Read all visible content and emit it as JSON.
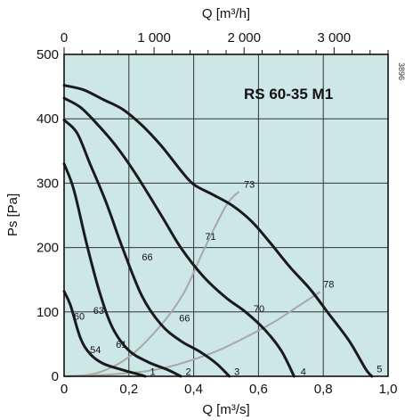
{
  "chart_data": {
    "type": "line",
    "title": "RS 60-35 M1",
    "side_code": "3896",
    "xlabel": "Q [m³/s]",
    "ylabel": "Ps [Pa]",
    "x2label": "Q [m³/h]",
    "xlim": [
      0,
      1.0
    ],
    "ylim": [
      0,
      500
    ],
    "x2lim": [
      0,
      3600
    ],
    "x_ticks": [
      0,
      0.2,
      0.4,
      0.6,
      0.8,
      1.0
    ],
    "x_tick_labels": [
      "0",
      "0,2",
      "0,4",
      "0,6",
      "0,8",
      "1,0"
    ],
    "y_ticks": [
      0,
      100,
      200,
      300,
      400,
      500
    ],
    "y_tick_labels": [
      "0",
      "100",
      "200",
      "300",
      "400",
      "500"
    ],
    "x2_ticks": [
      0,
      1000,
      2000,
      3000
    ],
    "x2_tick_labels": [
      "0",
      "1 000",
      "2 000",
      "3 000"
    ],
    "grid": true,
    "colors": {
      "plot_bg": "#cde6e6",
      "grid": "#333333",
      "curve": "#1a1a1a",
      "efficiency": "#a8a8a8"
    },
    "series": [
      {
        "name": "1",
        "points": [
          [
            0,
            132
          ],
          [
            0.02,
            110
          ],
          [
            0.05,
            60
          ],
          [
            0.08,
            35
          ],
          [
            0.12,
            20
          ],
          [
            0.18,
            10
          ],
          [
            0.23,
            3
          ],
          [
            0.25,
            0
          ]
        ]
      },
      {
        "name": "2",
        "points": [
          [
            0,
            330
          ],
          [
            0.03,
            290
          ],
          [
            0.07,
            205
          ],
          [
            0.11,
            130
          ],
          [
            0.15,
            75
          ],
          [
            0.2,
            40
          ],
          [
            0.26,
            22
          ],
          [
            0.32,
            10
          ],
          [
            0.36,
            0
          ]
        ]
      },
      {
        "name": "3",
        "points": [
          [
            0,
            398
          ],
          [
            0.04,
            378
          ],
          [
            0.08,
            330
          ],
          [
            0.13,
            270
          ],
          [
            0.18,
            200
          ],
          [
            0.24,
            125
          ],
          [
            0.3,
            80
          ],
          [
            0.36,
            55
          ],
          [
            0.42,
            38
          ],
          [
            0.47,
            20
          ],
          [
            0.51,
            0
          ]
        ]
      },
      {
        "name": "4",
        "points": [
          [
            0,
            432
          ],
          [
            0.05,
            418
          ],
          [
            0.1,
            393
          ],
          [
            0.16,
            358
          ],
          [
            0.22,
            315
          ],
          [
            0.3,
            250
          ],
          [
            0.36,
            200
          ],
          [
            0.43,
            155
          ],
          [
            0.5,
            122
          ],
          [
            0.56,
            100
          ],
          [
            0.62,
            72
          ],
          [
            0.67,
            40
          ],
          [
            0.71,
            0
          ]
        ]
      },
      {
        "name": "5",
        "points": [
          [
            0,
            452
          ],
          [
            0.06,
            445
          ],
          [
            0.12,
            430
          ],
          [
            0.18,
            415
          ],
          [
            0.24,
            390
          ],
          [
            0.3,
            358
          ],
          [
            0.36,
            320
          ],
          [
            0.4,
            298
          ],
          [
            0.46,
            282
          ],
          [
            0.52,
            265
          ],
          [
            0.58,
            240
          ],
          [
            0.64,
            205
          ],
          [
            0.7,
            168
          ],
          [
            0.76,
            135
          ],
          [
            0.82,
            95
          ],
          [
            0.88,
            55
          ],
          [
            0.93,
            12
          ],
          [
            0.95,
            0
          ]
        ]
      }
    ],
    "efficiency_lines": [
      {
        "points": [
          [
            0,
            0
          ],
          [
            0.1,
            5
          ],
          [
            0.2,
            30
          ],
          [
            0.3,
            80
          ],
          [
            0.37,
            130
          ],
          [
            0.43,
            195
          ],
          [
            0.5,
            265
          ],
          [
            0.54,
            287
          ]
        ]
      },
      {
        "points": [
          [
            0,
            0
          ],
          [
            0.15,
            3
          ],
          [
            0.3,
            12
          ],
          [
            0.45,
            35
          ],
          [
            0.55,
            58
          ],
          [
            0.65,
            85
          ],
          [
            0.72,
            108
          ],
          [
            0.79,
            131
          ]
        ]
      }
    ],
    "labels": [
      {
        "text": "60",
        "x": 0.03,
        "y": 88
      },
      {
        "text": "54",
        "x": 0.08,
        "y": 36
      },
      {
        "text": "63",
        "x": 0.09,
        "y": 97
      },
      {
        "text": "61",
        "x": 0.16,
        "y": 44
      },
      {
        "text": "66",
        "x": 0.24,
        "y": 180
      },
      {
        "text": "66",
        "x": 0.355,
        "y": 85
      },
      {
        "text": "71",
        "x": 0.435,
        "y": 212
      },
      {
        "text": "70",
        "x": 0.585,
        "y": 100
      },
      {
        "text": "73",
        "x": 0.555,
        "y": 293
      },
      {
        "text": "78",
        "x": 0.8,
        "y": 138
      },
      {
        "text": "1",
        "x": 0.265,
        "y": 2
      },
      {
        "text": "2",
        "x": 0.375,
        "y": 2
      },
      {
        "text": "3",
        "x": 0.525,
        "y": 2
      },
      {
        "text": "4",
        "x": 0.73,
        "y": 2
      },
      {
        "text": "5",
        "x": 0.965,
        "y": 6
      }
    ]
  }
}
